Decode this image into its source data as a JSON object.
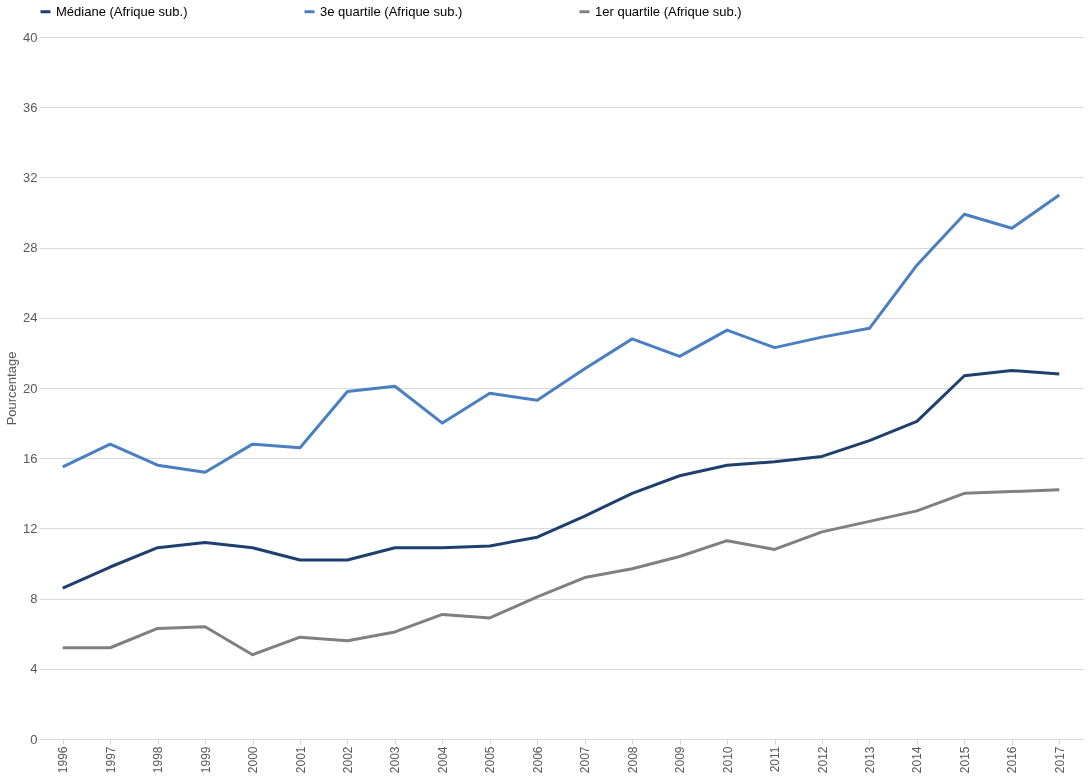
{
  "chart_data": {
    "type": "line",
    "ylabel": "Pourcentage",
    "categories": [
      "1996",
      "1997",
      "1998",
      "1999",
      "2000",
      "2001",
      "2002",
      "2003",
      "2004",
      "2005",
      "2006",
      "2007",
      "2008",
      "2009",
      "2010",
      "2011",
      "2012",
      "2013",
      "2014",
      "2015",
      "2016",
      "2017"
    ],
    "series": [
      {
        "name": "Médiane (Afrique sub.)",
        "color": "#1f3f6e",
        "values": [
          8.6,
          9.8,
          10.9,
          11.2,
          10.9,
          10.2,
          10.2,
          10.9,
          10.9,
          11.0,
          11.5,
          12.7,
          14.0,
          15.0,
          15.6,
          15.8,
          16.1,
          17.0,
          18.1,
          20.7,
          21.0,
          20.8
        ]
      },
      {
        "name": "3e quartile (Afrique sub.)",
        "color": "#4a7fc1",
        "values": [
          15.5,
          16.8,
          15.6,
          15.2,
          16.8,
          16.6,
          19.8,
          20.1,
          18.0,
          19.7,
          19.3,
          21.1,
          22.8,
          21.8,
          23.3,
          22.3,
          22.9,
          23.4,
          27.0,
          29.9,
          29.1,
          31.0
        ]
      },
      {
        "name": "1er quartile (Afrique sub.)",
        "color": "#808080",
        "values": [
          5.2,
          5.2,
          6.3,
          6.4,
          4.8,
          5.8,
          5.6,
          6.1,
          7.1,
          6.9,
          8.1,
          9.2,
          9.7,
          10.4,
          11.3,
          10.8,
          11.8,
          12.4,
          13.0,
          14.0,
          14.1,
          14.2
        ]
      }
    ],
    "ylim": [
      0,
      40
    ],
    "yticks": [
      0,
      4,
      8,
      12,
      16,
      20,
      24,
      28,
      32,
      36,
      40
    ],
    "grid": "y",
    "legend": "top",
    "marker": "none",
    "line_style": "solid"
  }
}
